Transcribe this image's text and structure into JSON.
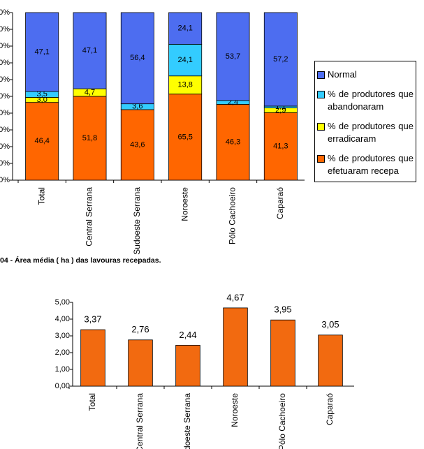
{
  "chart_data": [
    {
      "type": "stacked_percent_bar",
      "categories": [
        "Total",
        "Central Serrana",
        "Sudoeste Serrana",
        "Noroeste",
        "Pólo Cachoeiro",
        "Caparaó"
      ],
      "series": [
        {
          "name": "% de produtores que efetuaram recepa",
          "color": "#ff6600",
          "values": [
            46.4,
            51.8,
            43.6,
            65.5,
            46.3,
            41.3
          ],
          "value_labels": [
            "46,4",
            "51,8",
            "43,6",
            "65,5",
            "46,3",
            "41,3"
          ]
        },
        {
          "name": "% de produtores que erradicaram",
          "color": "#ffff00",
          "values": [
            3.0,
            4.7,
            null,
            13.8,
            null,
            2.9
          ],
          "value_labels": [
            "3,0",
            "4,7",
            null,
            "13,8",
            null,
            "2,9"
          ]
        },
        {
          "name": "% de produtores que abandonaram",
          "color": "#33ccff",
          "values": [
            3.5,
            null,
            3.6,
            24.1,
            2.4,
            1.1
          ],
          "value_labels": [
            "3,5",
            null,
            "3,6",
            "24,1",
            "2,4",
            "1,1"
          ]
        },
        {
          "name": "Normal",
          "color": "#4d6df0",
          "values": [
            47.1,
            47.1,
            56.4,
            24.1,
            53.7,
            57.2
          ],
          "value_labels": [
            "47,1",
            "47,1",
            "56,4",
            "24,1",
            "53,7",
            "57,2"
          ]
        }
      ],
      "ylim": [
        0,
        100
      ],
      "yticks": [
        {
          "value": 0,
          "label": "0%"
        },
        {
          "value": 10,
          "label": "10%"
        },
        {
          "value": 20,
          "label": "20%"
        },
        {
          "value": 30,
          "label": "30%"
        },
        {
          "value": 40,
          "label": "40%"
        },
        {
          "value": 50,
          "label": "50%"
        },
        {
          "value": 60,
          "label": "60%"
        },
        {
          "value": 70,
          "label": "70%"
        },
        {
          "value": 80,
          "label": "80%"
        },
        {
          "value": 90,
          "label": "90%"
        },
        {
          "value": 100,
          "label": "100%"
        }
      ],
      "legend": "right"
    },
    {
      "type": "bar",
      "title": "04 - Área média ( ha ) das lavouras recepadas.",
      "categories": [
        "Total",
        "Central Serrana",
        "Sudoeste Serrana",
        "Noroeste",
        "Pólo Cachoeiro",
        "Caparaó"
      ],
      "values": [
        3.37,
        2.76,
        2.44,
        4.67,
        3.95,
        3.05
      ],
      "value_labels": [
        "3,37",
        "2,76",
        "2,44",
        "4,67",
        "3,95",
        "3,05"
      ],
      "color": "#f26a10",
      "ylim": [
        0,
        5
      ],
      "yticks": [
        {
          "value": 0,
          "label": "0,00"
        },
        {
          "value": 1,
          "label": "1,00"
        },
        {
          "value": 2,
          "label": "2,00"
        },
        {
          "value": 3,
          "label": "3,00"
        },
        {
          "value": 4,
          "label": "4,00"
        },
        {
          "value": 5,
          "label": "5,00"
        }
      ]
    }
  ]
}
